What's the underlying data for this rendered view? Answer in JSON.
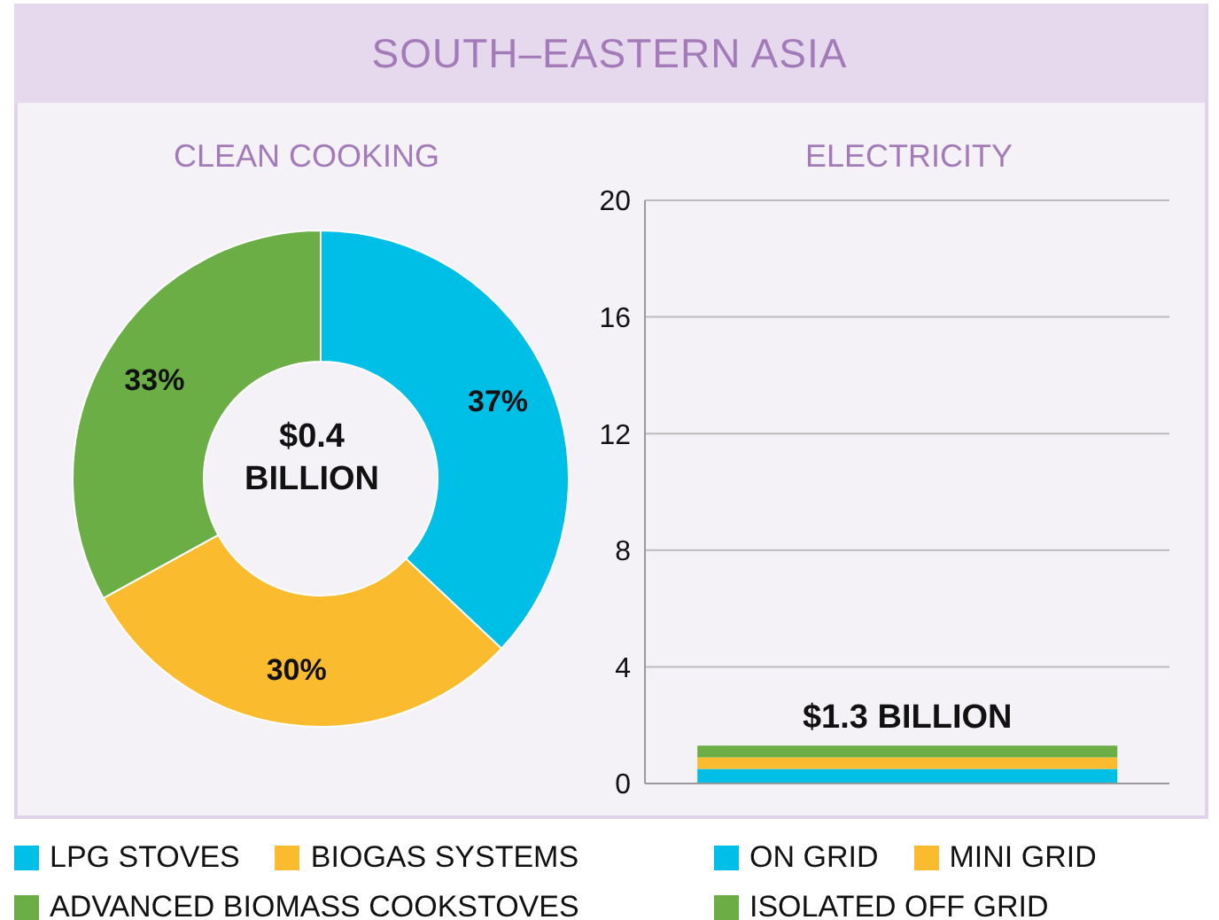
{
  "chart_data": [
    {
      "type": "other",
      "title": "SOUTH–EASTERN ASIA"
    },
    {
      "type": "donut",
      "title": "CLEAN COOKING",
      "categories": [
        "LPG STOVES",
        "BIOGAS SYSTEMS",
        "ADVANCED BIOMASS COOKSTOVES"
      ],
      "values": [
        37,
        30,
        33
      ],
      "colors": [
        "#00bfe7",
        "#fbbb2f",
        "#6aae45"
      ],
      "value_labels": [
        "37%",
        "30%",
        "33%"
      ],
      "annotations": [
        "$0.4 BILLION"
      ],
      "legend": "bottom"
    },
    {
      "type": "bar",
      "title": "ELECTRICITY",
      "categories": [
        null
      ],
      "stacked": true,
      "series": [
        {
          "name": "ON GRID",
          "color": "#00bfe7",
          "values": [
            0.5
          ]
        },
        {
          "name": "MINI GRID",
          "color": "#fbbb2f",
          "values": [
            0.4
          ]
        },
        {
          "name": "ISOLATED OFF GRID",
          "color": "#6aae45",
          "values": [
            0.4
          ]
        }
      ],
      "totals": [
        "$1.3 BILLION"
      ],
      "ylim": [
        0,
        20
      ],
      "yticks": [
        0,
        4,
        8,
        12,
        16,
        20
      ],
      "grid": "y",
      "legend": "bottom"
    }
  ]
}
